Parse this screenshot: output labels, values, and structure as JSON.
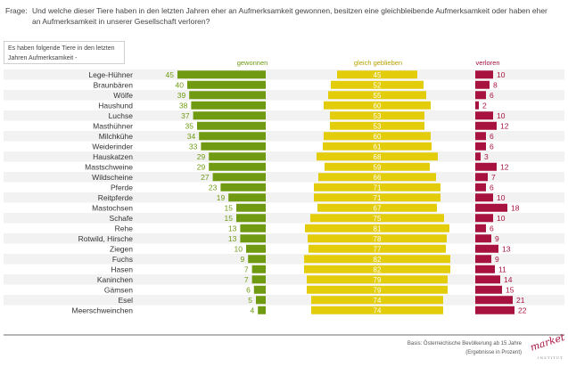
{
  "question": {
    "label": "Frage:",
    "text": "Und welche dieser Tiere haben in den letzten Jahren eher an Aufmerksamkeit gewonnen, besitzen eine gleichbleibende Aufmerksamkeit oder haben eher an Aufmerksamkeit in unserer Gesellschaft verloren?"
  },
  "note": "Es haben folgende Tiere in den letzten Jahren Aufmerksamkeit -",
  "footer": {
    "basis": "Basis: Österreichische Bevölkerung ab 15 Jahre",
    "detail": "(Ergebnisse in Prozent)"
  },
  "logo": {
    "word": "market",
    "sub": "INSTITUT"
  },
  "colors": {
    "gewonnen": "#6f9a12",
    "gleich": "#e3cc0a",
    "verloren": "#a8123e",
    "stripe": "#f2f2f2"
  },
  "chart_data": {
    "type": "bar",
    "series": [
      {
        "name": "gewonnen",
        "values": [
          45,
          40,
          39,
          38,
          37,
          35,
          34,
          33,
          29,
          29,
          27,
          23,
          19,
          15,
          15,
          13,
          13,
          10,
          9,
          7,
          7,
          6,
          5,
          4
        ]
      },
      {
        "name": "gleich geblieben",
        "values": [
          45,
          52,
          55,
          60,
          53,
          53,
          60,
          61,
          68,
          59,
          66,
          71,
          71,
          67,
          75,
          81,
          78,
          77,
          82,
          82,
          79,
          79,
          74,
          74
        ]
      },
      {
        "name": "verloren",
        "values": [
          10,
          8,
          6,
          2,
          10,
          12,
          6,
          6,
          3,
          12,
          7,
          6,
          10,
          18,
          10,
          6,
          9,
          13,
          9,
          11,
          14,
          15,
          21,
          22
        ]
      }
    ],
    "categories": [
      "Lege-Hühner",
      "Braunbären",
      "Wölfe",
      "Haushund",
      "Luchse",
      "Masthühner",
      "Milchkühe",
      "Weiderinder",
      "Hauskatzen",
      "Mastschweine",
      "Wildscheine",
      "Pferde",
      "Reitpferde",
      "Mastochsen",
      "Schafe",
      "Rehe",
      "Rotwild, Hirsche",
      "Ziegen",
      "Fuchs",
      "Hasen",
      "Kaninchen",
      "Gämsen",
      "Esel",
      "Meerschweinchen"
    ]
  }
}
